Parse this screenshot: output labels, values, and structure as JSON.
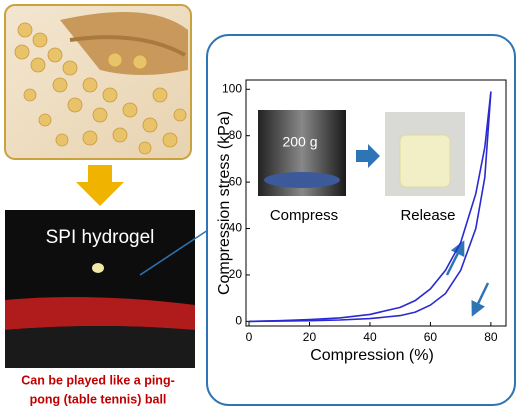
{
  "photo_label": "SPI hydrogel",
  "caption": [
    "Can be played like a ping-",
    "pong (table tennis) ball"
  ],
  "chart_data": {
    "type": "line",
    "x_label": "Compression (%)",
    "y_label": "Compression stress (kPa)",
    "annotations": [
      "200 g",
      "Compress",
      "Release"
    ],
    "x": [
      0,
      10,
      20,
      30,
      40,
      50,
      55,
      60,
      65,
      70,
      75,
      78,
      80
    ],
    "series": [
      {
        "color": "#2a2ad0",
        "values": [
          0,
          0.3,
          0.8,
          1.5,
          3,
          6,
          9,
          14,
          22,
          34,
          55,
          75,
          99
        ]
      },
      {
        "color": "#2a2ad0",
        "values": [
          0,
          0.1,
          0.3,
          0.6,
          1.2,
          2.5,
          4,
          7,
          12,
          22,
          40,
          62,
          99
        ]
      }
    ],
    "xlim": [
      -1,
      85
    ],
    "ylim": [
      -2,
      104
    ],
    "xticks": [
      0,
      20,
      40,
      60,
      80
    ],
    "yticks": [
      0,
      20,
      40,
      60,
      80,
      100
    ],
    "grid": false
  }
}
